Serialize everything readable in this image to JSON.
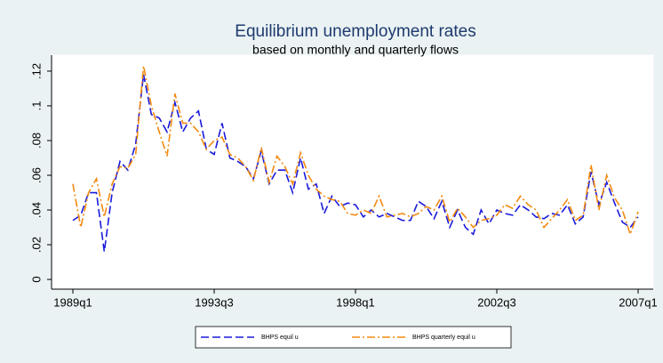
{
  "chart_data": {
    "type": "line",
    "title": "Equilibrium unemployment rates",
    "subtitle": "based on monthly and quarterly flows",
    "categories": [
      "1989q1",
      null,
      null,
      null,
      null,
      null,
      null,
      null,
      null,
      null,
      null,
      null,
      null,
      null,
      null,
      null,
      null,
      null,
      "1993q3",
      null,
      null,
      null,
      null,
      null,
      null,
      null,
      null,
      null,
      null,
      null,
      null,
      null,
      null,
      null,
      null,
      null,
      "1998q1",
      null,
      null,
      null,
      null,
      null,
      null,
      null,
      null,
      null,
      null,
      null,
      null,
      null,
      null,
      null,
      null,
      null,
      "2002q3",
      null,
      null,
      null,
      null,
      null,
      null,
      null,
      null,
      null,
      null,
      null,
      null,
      null,
      null,
      null,
      null,
      null,
      "2007q1"
    ],
    "series": [
      {
        "name": "BHPS equil u",
        "color": "#1a1adb",
        "dash": "9,4",
        "values": [
          0.034,
          0.037,
          0.05,
          0.05,
          0.016,
          0.05,
          0.068,
          0.063,
          0.078,
          0.118,
          0.095,
          0.093,
          0.085,
          0.102,
          0.085,
          0.093,
          0.097,
          0.075,
          0.072,
          0.09,
          0.07,
          0.068,
          0.065,
          0.058,
          0.074,
          0.055,
          0.063,
          0.063,
          0.05,
          0.07,
          0.052,
          0.055,
          0.038,
          0.048,
          0.042,
          0.044,
          0.043,
          0.036,
          0.04,
          0.036,
          0.038,
          0.036,
          0.034,
          0.034,
          0.045,
          0.042,
          0.035,
          0.045,
          0.03,
          0.04,
          0.03,
          0.026,
          0.04,
          0.032,
          0.04,
          0.038,
          0.037,
          0.043,
          0.04,
          0.036,
          0.035,
          0.038,
          0.037,
          0.043,
          0.032,
          0.036,
          0.062,
          0.043,
          0.056,
          0.044,
          0.033,
          0.03,
          0.036
        ]
      },
      {
        "name": "BHPS quarterly equil u",
        "color": "#f28a10",
        "dash": "9,3,2,3",
        "values": [
          0.055,
          0.03,
          0.05,
          0.058,
          0.036,
          0.055,
          0.065,
          0.064,
          0.072,
          0.123,
          0.1,
          0.085,
          0.071,
          0.107,
          0.09,
          0.09,
          0.085,
          0.075,
          0.08,
          0.082,
          0.072,
          0.07,
          0.065,
          0.057,
          0.076,
          0.056,
          0.071,
          0.065,
          0.055,
          0.073,
          0.06,
          0.052,
          0.048,
          0.046,
          0.045,
          0.038,
          0.037,
          0.04,
          0.038,
          0.048,
          0.036,
          0.037,
          0.038,
          0.036,
          0.038,
          0.042,
          0.04,
          0.048,
          0.033,
          0.041,
          0.036,
          0.03,
          0.034,
          0.035,
          0.037,
          0.043,
          0.041,
          0.048,
          0.043,
          0.04,
          0.03,
          0.035,
          0.04,
          0.046,
          0.034,
          0.037,
          0.066,
          0.04,
          0.06,
          0.047,
          0.04,
          0.026,
          0.039
        ]
      }
    ],
    "ylim": [
      -0.0056,
      0.1292
    ],
    "yticks": [
      0,
      {
        "value": 0.02,
        "label": ".02"
      },
      {
        "value": 0.04,
        "label": ".04"
      },
      {
        "value": 0.06,
        "label": ".06"
      },
      {
        "value": 0.08,
        "label": ".08"
      },
      {
        "value": 0.1,
        "label": ".1"
      },
      {
        "value": 0.12,
        "label": ".12"
      }
    ],
    "grid": false,
    "legend": "bottom"
  }
}
